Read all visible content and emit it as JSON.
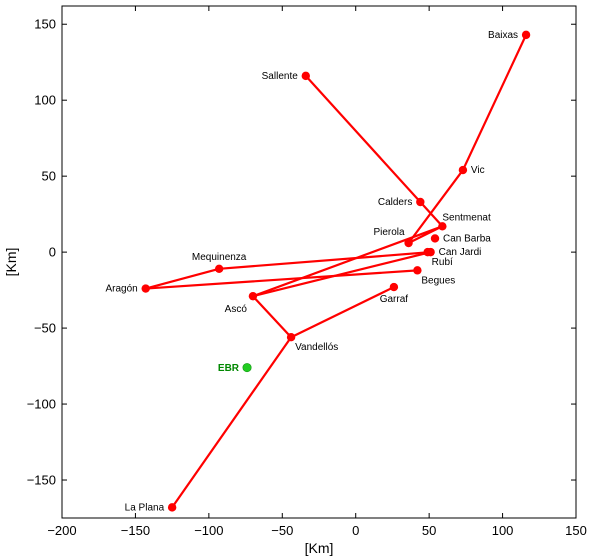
{
  "chart_data": {
    "type": "line",
    "xlabel": "[Km]",
    "ylabel": "[Km]",
    "xlim": [
      -200,
      150
    ],
    "ylim": [
      -175,
      162
    ],
    "x_ticks": [
      -200,
      -150,
      -100,
      -50,
      0,
      50,
      100,
      150
    ],
    "y_ticks": [
      -150,
      -100,
      -50,
      0,
      50,
      100,
      150
    ],
    "grid": false,
    "colors": {
      "network": "#ff0000",
      "ebr": "#22cc22",
      "ebr_label": "#008800",
      "axes": "#000000"
    },
    "nodes": [
      {
        "name": "Baixas",
        "x": 116,
        "y": 143,
        "label_side": "left"
      },
      {
        "name": "Sallente",
        "x": -34,
        "y": 116,
        "label_side": "left"
      },
      {
        "name": "Vic",
        "x": 73,
        "y": 54,
        "label_side": "right"
      },
      {
        "name": "Calders",
        "x": 44,
        "y": 33,
        "label_side": "left"
      },
      {
        "name": "Sentmenat",
        "x": 59,
        "y": 17,
        "label_side": "above-right"
      },
      {
        "name": "Pierola",
        "x": 36,
        "y": 6,
        "label_side": "above-left"
      },
      {
        "name": "Can Barba",
        "x": 54,
        "y": 9,
        "label_side": "right"
      },
      {
        "name": "Can Jardi",
        "x": 51,
        "y": 0,
        "label_side": "right"
      },
      {
        "name": "Rubí",
        "x": 49,
        "y": 0,
        "label_side": "below-right"
      },
      {
        "name": "Mequinenza",
        "x": -93,
        "y": -11,
        "label_side": "above"
      },
      {
        "name": "Begues",
        "x": 42,
        "y": -12,
        "label_side": "below-right"
      },
      {
        "name": "Garraf",
        "x": 26,
        "y": -23,
        "label_side": "below"
      },
      {
        "name": "Aragón",
        "x": -143,
        "y": -24,
        "label_side": "left"
      },
      {
        "name": "Ascó",
        "x": -70,
        "y": -29,
        "label_side": "below-left"
      },
      {
        "name": "Vandellós",
        "x": -44,
        "y": -56,
        "label_side": "below-right"
      },
      {
        "name": "La Plana",
        "x": -125,
        "y": -168,
        "label_side": "left"
      }
    ],
    "segments": [
      [
        -34,
        116,
        59,
        17
      ],
      [
        116,
        143,
        73,
        54
      ],
      [
        73,
        54,
        36,
        6
      ],
      [
        36,
        6,
        59,
        17
      ],
      [
        59,
        17,
        -70,
        -29
      ],
      [
        -93,
        -11,
        51,
        0
      ],
      [
        -143,
        -24,
        -93,
        -11
      ],
      [
        -143,
        -24,
        42,
        -12
      ],
      [
        -70,
        -29,
        51,
        0
      ],
      [
        -70,
        -29,
        -44,
        -56
      ],
      [
        -44,
        -56,
        26,
        -23
      ],
      [
        -44,
        -56,
        -125,
        -168
      ]
    ],
    "ebr": {
      "name": "EBR",
      "x": -74,
      "y": -76
    }
  }
}
